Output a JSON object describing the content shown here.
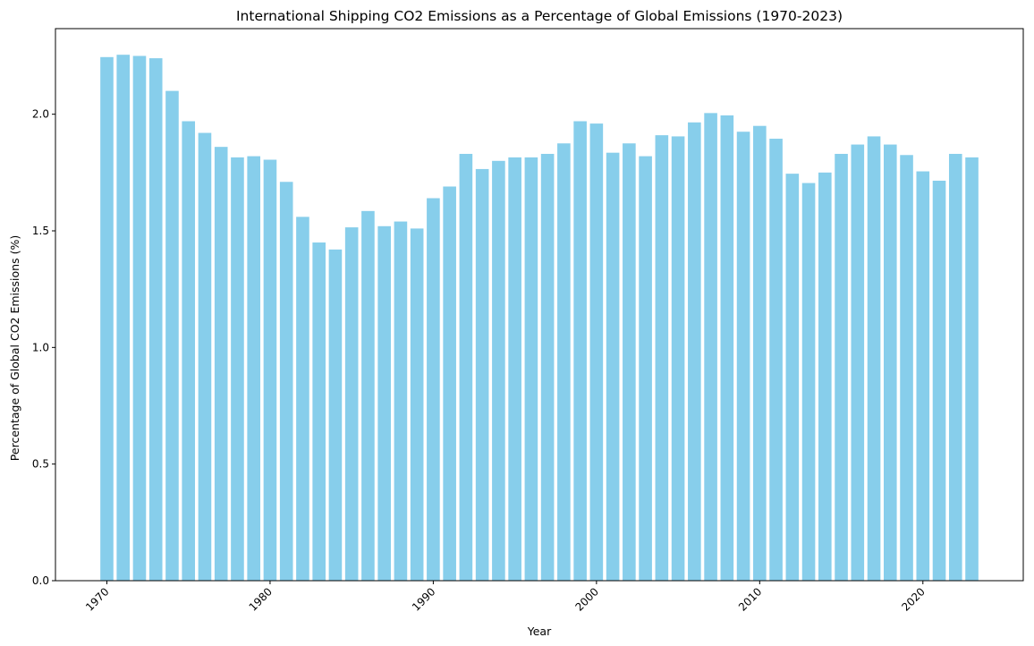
{
  "chart_data": {
    "type": "bar",
    "title": "International Shipping CO2 Emissions as a Percentage of Global Emissions (1970-2023)",
    "xlabel": "Year",
    "ylabel": "Percentage of Global CO2 Emissions (%)",
    "x": [
      1970,
      1971,
      1972,
      1973,
      1974,
      1975,
      1976,
      1977,
      1978,
      1979,
      1980,
      1981,
      1982,
      1983,
      1984,
      1985,
      1986,
      1987,
      1988,
      1989,
      1990,
      1991,
      1992,
      1993,
      1994,
      1995,
      1996,
      1997,
      1998,
      1999,
      2000,
      2001,
      2002,
      2003,
      2004,
      2005,
      2006,
      2007,
      2008,
      2009,
      2010,
      2011,
      2012,
      2013,
      2014,
      2015,
      2016,
      2017,
      2018,
      2019,
      2020,
      2021,
      2022,
      2023
    ],
    "values": [
      2.245,
      2.255,
      2.25,
      2.24,
      2.1,
      1.97,
      1.92,
      1.86,
      1.815,
      1.82,
      1.805,
      1.71,
      1.56,
      1.45,
      1.42,
      1.515,
      1.585,
      1.52,
      1.54,
      1.51,
      1.64,
      1.69,
      1.83,
      1.765,
      1.8,
      1.815,
      1.815,
      1.83,
      1.875,
      1.97,
      1.96,
      1.835,
      1.875,
      1.82,
      1.91,
      1.905,
      1.965,
      2.005,
      1.995,
      1.925,
      1.95,
      1.895,
      1.745,
      1.705,
      1.75,
      1.83,
      1.87,
      1.905,
      1.87,
      1.825,
      1.755,
      1.715,
      1.83,
      1.815
    ],
    "xticks": [
      "1970",
      "1980",
      "1990",
      "2000",
      "2010",
      "2020"
    ],
    "yticks": [
      "0.0",
      "0.5",
      "1.0",
      "1.5",
      "2.0"
    ],
    "ylim": [
      0,
      2.367
    ],
    "xlim": [
      1966.85,
      2026.15
    ],
    "bar_color": "#87CEEB",
    "grid": false,
    "legend": "none"
  }
}
